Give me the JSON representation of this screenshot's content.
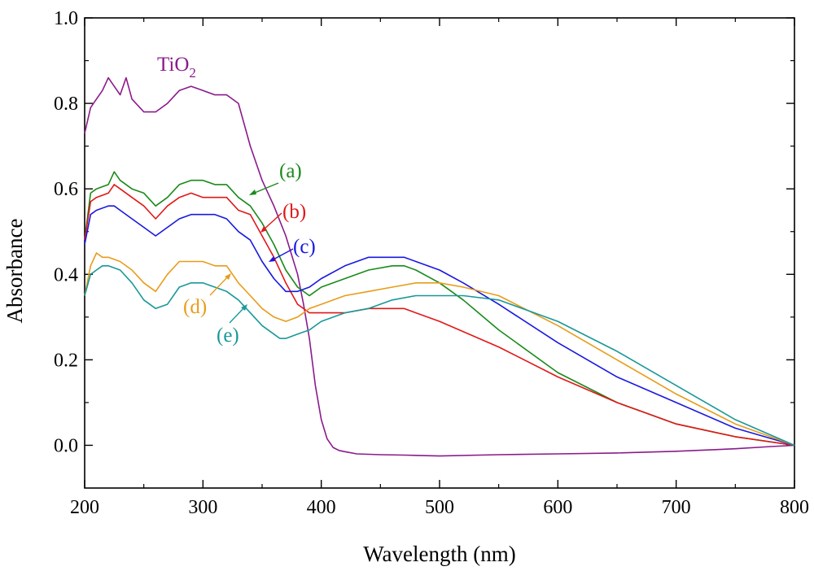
{
  "chart_data": {
    "type": "line",
    "title": "",
    "xlabel": "Wavelength (nm)",
    "ylabel": "Absorbance",
    "xlim": [
      200,
      800
    ],
    "ylim": [
      -0.1,
      1.0
    ],
    "xticks": [
      200,
      300,
      400,
      500,
      600,
      700,
      800
    ],
    "xtick_labels": [
      "200",
      "300",
      "400",
      "500",
      "600",
      "700",
      "800"
    ],
    "yticks": [
      0.0,
      0.2,
      0.4,
      0.6,
      0.8,
      1.0
    ],
    "ytick_labels": [
      "0.0",
      "0.2",
      "0.4",
      "0.6",
      "0.8",
      "1.0"
    ],
    "grid": false,
    "series": [
      {
        "name": "TiO2",
        "label_main": "TiO",
        "label_sub": "2",
        "color": "#8b1a8b",
        "x": [
          200,
          205,
          210,
          215,
          220,
          225,
          230,
          235,
          240,
          250,
          260,
          270,
          280,
          290,
          300,
          310,
          320,
          330,
          340,
          350,
          360,
          370,
          380,
          385,
          390,
          395,
          400,
          405,
          410,
          415,
          420,
          430,
          450,
          470,
          500,
          550,
          600,
          650,
          700,
          750,
          780,
          800
        ],
        "y": [
          0.73,
          0.79,
          0.81,
          0.83,
          0.86,
          0.84,
          0.82,
          0.86,
          0.81,
          0.78,
          0.78,
          0.8,
          0.83,
          0.84,
          0.83,
          0.82,
          0.82,
          0.8,
          0.7,
          0.62,
          0.56,
          0.49,
          0.4,
          0.33,
          0.25,
          0.14,
          0.06,
          0.015,
          -0.005,
          -0.012,
          -0.015,
          -0.02,
          -0.022,
          -0.023,
          -0.025,
          -0.022,
          -0.02,
          -0.018,
          -0.014,
          -0.008,
          -0.003,
          0.0
        ]
      },
      {
        "name": "(a)",
        "color": "#1a8a1a",
        "x": [
          200,
          205,
          210,
          220,
          225,
          230,
          240,
          250,
          260,
          270,
          280,
          290,
          300,
          310,
          320,
          330,
          340,
          350,
          360,
          370,
          380,
          390,
          400,
          420,
          440,
          460,
          470,
          480,
          500,
          520,
          550,
          600,
          650,
          700,
          750,
          800
        ],
        "y": [
          0.48,
          0.59,
          0.6,
          0.61,
          0.64,
          0.62,
          0.6,
          0.59,
          0.56,
          0.58,
          0.61,
          0.62,
          0.62,
          0.61,
          0.61,
          0.58,
          0.56,
          0.52,
          0.47,
          0.41,
          0.37,
          0.35,
          0.37,
          0.39,
          0.41,
          0.42,
          0.42,
          0.41,
          0.38,
          0.34,
          0.27,
          0.17,
          0.1,
          0.05,
          0.02,
          0.0
        ]
      },
      {
        "name": "(b)",
        "color": "#e01818",
        "x": [
          200,
          205,
          210,
          220,
          225,
          230,
          240,
          250,
          260,
          270,
          280,
          290,
          300,
          310,
          320,
          330,
          340,
          350,
          360,
          370,
          380,
          390,
          400,
          420,
          440,
          460,
          470,
          480,
          500,
          550,
          600,
          650,
          700,
          750,
          800
        ],
        "y": [
          0.48,
          0.57,
          0.58,
          0.59,
          0.61,
          0.6,
          0.58,
          0.56,
          0.53,
          0.56,
          0.58,
          0.59,
          0.58,
          0.58,
          0.58,
          0.55,
          0.54,
          0.49,
          0.44,
          0.38,
          0.33,
          0.31,
          0.31,
          0.31,
          0.32,
          0.32,
          0.32,
          0.31,
          0.29,
          0.23,
          0.16,
          0.1,
          0.05,
          0.02,
          0.0
        ]
      },
      {
        "name": "(c)",
        "color": "#1818e0",
        "x": [
          200,
          205,
          210,
          220,
          225,
          230,
          240,
          250,
          260,
          270,
          280,
          290,
          300,
          310,
          320,
          330,
          340,
          350,
          360,
          370,
          380,
          390,
          400,
          420,
          440,
          460,
          470,
          480,
          500,
          520,
          550,
          600,
          650,
          700,
          750,
          800
        ],
        "y": [
          0.47,
          0.54,
          0.55,
          0.56,
          0.56,
          0.55,
          0.53,
          0.51,
          0.49,
          0.51,
          0.53,
          0.54,
          0.54,
          0.54,
          0.53,
          0.5,
          0.48,
          0.43,
          0.39,
          0.36,
          0.36,
          0.37,
          0.39,
          0.42,
          0.44,
          0.44,
          0.44,
          0.43,
          0.41,
          0.38,
          0.33,
          0.24,
          0.16,
          0.1,
          0.04,
          0.0
        ]
      },
      {
        "name": "(d)",
        "color": "#e89c1a",
        "x": [
          200,
          205,
          210,
          215,
          220,
          230,
          240,
          250,
          260,
          270,
          280,
          290,
          300,
          310,
          320,
          330,
          340,
          350,
          360,
          370,
          380,
          390,
          400,
          420,
          440,
          460,
          480,
          500,
          520,
          550,
          600,
          650,
          700,
          750,
          800
        ],
        "y": [
          0.35,
          0.42,
          0.45,
          0.44,
          0.44,
          0.43,
          0.41,
          0.38,
          0.36,
          0.4,
          0.43,
          0.43,
          0.43,
          0.42,
          0.42,
          0.38,
          0.35,
          0.32,
          0.3,
          0.29,
          0.3,
          0.32,
          0.33,
          0.35,
          0.36,
          0.37,
          0.38,
          0.38,
          0.37,
          0.35,
          0.28,
          0.2,
          0.12,
          0.05,
          0.0
        ]
      },
      {
        "name": "(e)",
        "color": "#1a9898",
        "x": [
          200,
          205,
          210,
          215,
          220,
          230,
          240,
          250,
          260,
          270,
          280,
          290,
          300,
          310,
          320,
          330,
          340,
          350,
          360,
          365,
          370,
          380,
          390,
          400,
          420,
          440,
          460,
          480,
          500,
          520,
          550,
          600,
          650,
          700,
          750,
          800
        ],
        "y": [
          0.35,
          0.4,
          0.41,
          0.42,
          0.42,
          0.41,
          0.38,
          0.34,
          0.32,
          0.33,
          0.37,
          0.38,
          0.38,
          0.37,
          0.36,
          0.34,
          0.31,
          0.28,
          0.26,
          0.25,
          0.25,
          0.26,
          0.27,
          0.29,
          0.31,
          0.32,
          0.34,
          0.35,
          0.35,
          0.35,
          0.34,
          0.29,
          0.22,
          0.14,
          0.06,
          0.0
        ]
      }
    ]
  }
}
